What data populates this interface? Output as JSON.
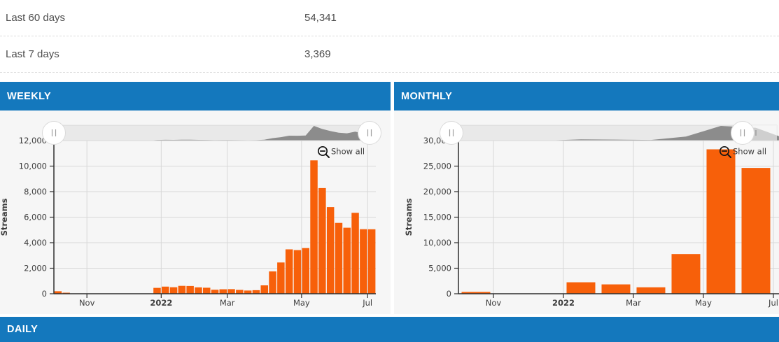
{
  "stats": {
    "rows": [
      {
        "label": "Last 60 days",
        "value": "54,341"
      },
      {
        "label": "Last 7 days",
        "value": "3,369"
      }
    ]
  },
  "panels": {
    "weekly": {
      "title": "WEEKLY"
    },
    "monthly": {
      "title": "MONTHLY"
    },
    "daily": {
      "title": "DAILY"
    }
  },
  "colors": {
    "accent_blue": "#1478bd",
    "bar_orange": "#f7600a",
    "panel_background": "#f6f6f6",
    "navigator_track": "#e9e9e9",
    "navigator_series": "#8c8c8c",
    "gridline": "#d8d8d8",
    "axis": "#2f2f2f",
    "label_text": "#3d3d3d"
  },
  "chart_data": [
    {
      "id": "weekly",
      "type": "bar",
      "title": "WEEKLY",
      "xlabel": "",
      "ylabel": "Streams",
      "x_unit": "week",
      "ylim": [
        0,
        12000
      ],
      "grid": true,
      "show_all": "Show all",
      "y_ticks": [
        {
          "v": 0,
          "label": "0"
        },
        {
          "v": 2000,
          "label": "2,000"
        },
        {
          "v": 4000,
          "label": "4,000"
        },
        {
          "v": 6000,
          "label": "6,000"
        },
        {
          "v": 8000,
          "label": "8,000"
        },
        {
          "v": 10000,
          "label": "10,000"
        },
        {
          "v": 12000,
          "label": "12,000"
        }
      ],
      "x_ticks": [
        {
          "slot": 4,
          "label": "Nov",
          "bold": false
        },
        {
          "slot": 13,
          "label": "2022",
          "bold": true
        },
        {
          "slot": 21,
          "label": "Mar",
          "bold": false
        },
        {
          "slot": 30,
          "label": "May",
          "bold": false
        },
        {
          "slot": 38,
          "label": "Jul",
          "bold": false
        }
      ],
      "values": [
        200,
        80,
        0,
        0,
        0,
        0,
        0,
        0,
        0,
        0,
        0,
        0,
        460,
        560,
        510,
        620,
        610,
        500,
        470,
        310,
        350,
        360,
        300,
        250,
        280,
        660,
        1750,
        2450,
        3480,
        3420,
        3580,
        10450,
        8280,
        6790,
        5550,
        5170,
        6340,
        5060,
        5050
      ]
    },
    {
      "id": "monthly",
      "type": "bar",
      "title": "MONTHLY",
      "xlabel": "",
      "ylabel": "Streams",
      "x_unit": "month",
      "ylim": [
        0,
        30000
      ],
      "grid": true,
      "show_all": "Show all",
      "y_ticks": [
        {
          "v": 0,
          "label": "0"
        },
        {
          "v": 5000,
          "label": "5,000"
        },
        {
          "v": 10000,
          "label": "10,000"
        },
        {
          "v": 15000,
          "label": "15,000"
        },
        {
          "v": 20000,
          "label": "20,000"
        },
        {
          "v": 25000,
          "label": "25,000"
        },
        {
          "v": 30000,
          "label": "30,000"
        }
      ],
      "x_ticks": [
        {
          "slot": 1,
          "label": "Nov",
          "bold": false
        },
        {
          "slot": 3,
          "label": "2022",
          "bold": true
        },
        {
          "slot": 5,
          "label": "Mar",
          "bold": false
        },
        {
          "slot": 7,
          "label": "May",
          "bold": false
        },
        {
          "slot": 9,
          "label": "Jul",
          "bold": false
        }
      ],
      "values": [
        350,
        0,
        0,
        2250,
        1830,
        1260,
        7780,
        28290,
        24640,
        0
      ]
    }
  ]
}
